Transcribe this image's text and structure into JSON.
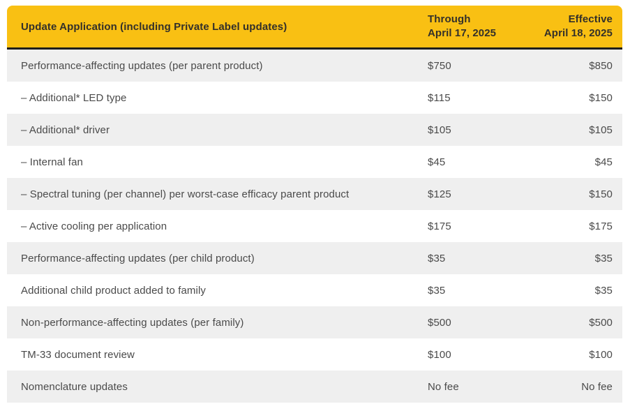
{
  "colors": {
    "header_bg": "#F9C013",
    "header_text": "#33302A",
    "divider": "#1E1E1C",
    "row_alt_bg": "#EFEFEF",
    "row_text": "#4A4A4A"
  },
  "table": {
    "header": {
      "title": "Update Application (including Private Label updates)",
      "through_line1": "Through",
      "through_line2": "April 17, 2025",
      "effective_line1": "Effective",
      "effective_line2": "April 18, 2025"
    },
    "rows": [
      {
        "label": "Performance-affecting updates (per parent product)",
        "through": "$750",
        "effective": "$850"
      },
      {
        "label": "– Additional* LED type",
        "through": "$115",
        "effective": "$150"
      },
      {
        "label": "– Additional* driver",
        "through": "$105",
        "effective": "$105"
      },
      {
        "label": "– Internal fan",
        "through": "$45",
        "effective": "$45"
      },
      {
        "label": "– Spectral tuning (per channel) per worst-case efficacy parent product",
        "through": "$125",
        "effective": "$150"
      },
      {
        "label": "– Active cooling per application",
        "through": "$175",
        "effective": "$175"
      },
      {
        "label": "Performance-affecting updates (per child product)",
        "through": "$35",
        "effective": "$35"
      },
      {
        "label": "Additional child product added to family",
        "through": "$35",
        "effective": "$35"
      },
      {
        "label": "Non-performance-affecting updates (per family)",
        "through": "$500",
        "effective": "$500"
      },
      {
        "label": "TM-33 document review",
        "through": "$100",
        "effective": "$100"
      },
      {
        "label": "Nomenclature updates",
        "through": "No fee",
        "effective": "No fee"
      }
    ]
  }
}
